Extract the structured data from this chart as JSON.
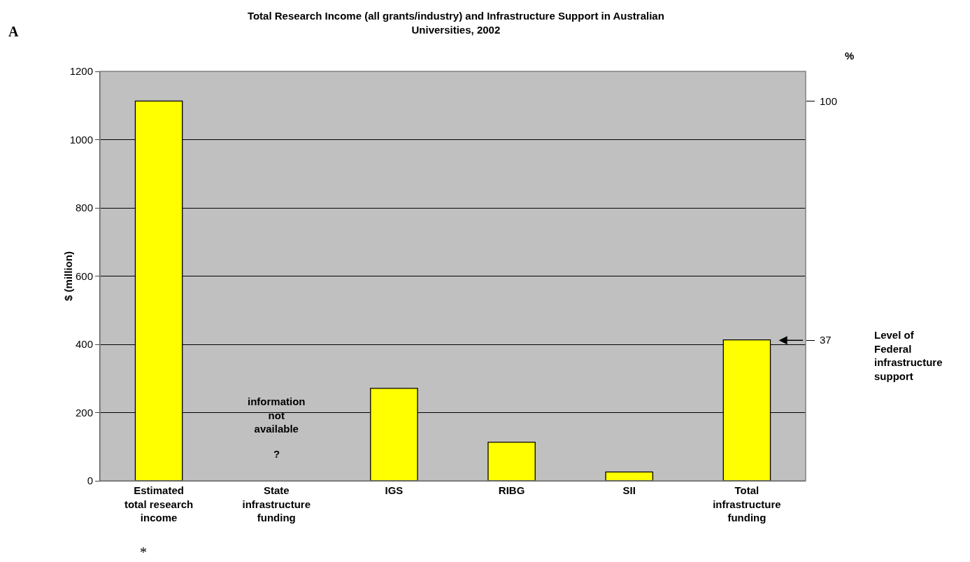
{
  "chart_data": {
    "type": "bar",
    "title": "Total Research Income (all grants/industry) and Infrastructure Support in Australian Universities, 2002",
    "ylabel": "$ (million)",
    "y2label": "%",
    "categories": [
      "Estimated total research income",
      "State infrastructure funding",
      "IGS",
      "RIBG",
      "SII",
      "Total infrastructure funding"
    ],
    "series": [
      {
        "color": "#ffff00",
        "values": [
          1113,
          null,
          271,
          113,
          26,
          413
        ]
      }
    ],
    "ylim": [
      0,
      1200
    ],
    "yticks": [
      0,
      200,
      400,
      600,
      800,
      1000,
      1200
    ],
    "y2lim": [
      0,
      107.8
    ],
    "y2ticks": [
      37,
      100
    ],
    "grid": "y",
    "annotations": [
      "A",
      "information not available",
      "?",
      "Level of Federal infrastructure support",
      "*"
    ]
  }
}
